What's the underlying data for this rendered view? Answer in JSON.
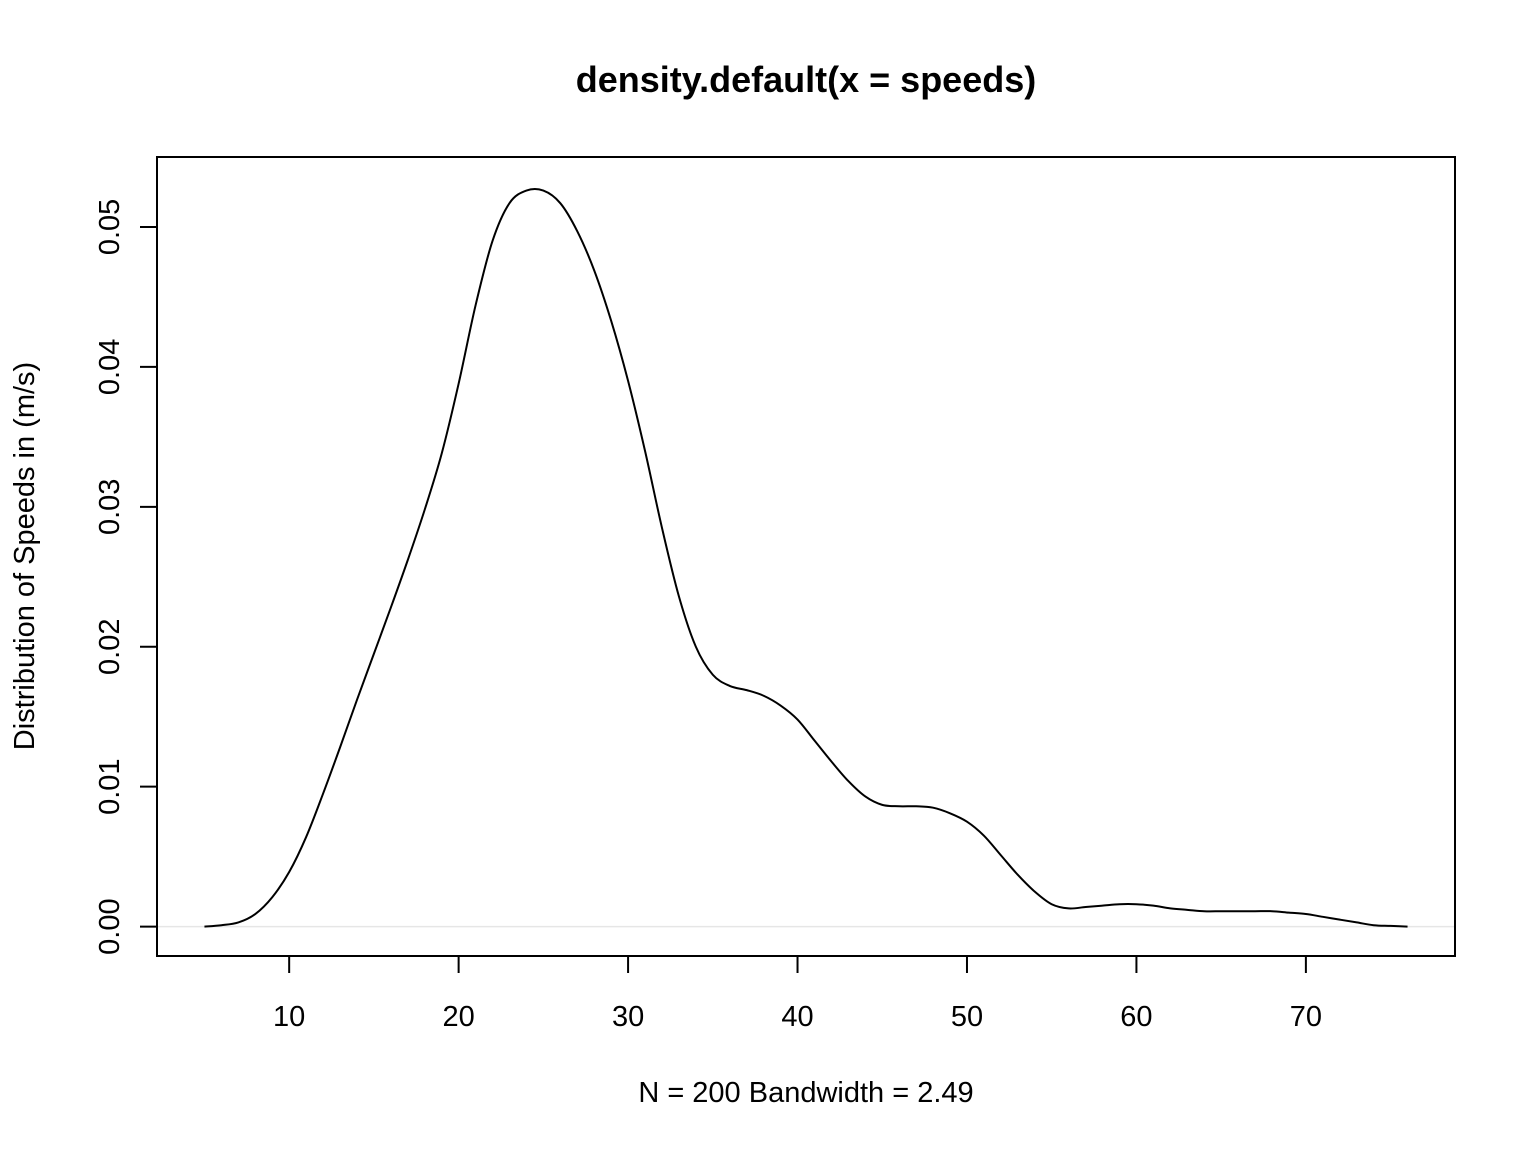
{
  "chart_data": {
    "type": "line",
    "title": "density.default(x = speeds)",
    "xlabel": "N = 200   Bandwidth = 2.49",
    "ylabel": "Distribution of Speeds in (m/s)",
    "xlim": [
      2.2,
      78.8
    ],
    "ylim": [
      -0.0021,
      0.055
    ],
    "x_ticks": [
      10,
      20,
      30,
      40,
      50,
      60,
      70
    ],
    "x_tick_labels": [
      "10",
      "20",
      "30",
      "40",
      "50",
      "60",
      "70"
    ],
    "y_ticks": [
      0.0,
      0.01,
      0.02,
      0.03,
      0.04,
      0.05
    ],
    "y_tick_labels": [
      "0.00",
      "0.01",
      "0.02",
      "0.03",
      "0.04",
      "0.05"
    ],
    "zero_line": true,
    "grid": false,
    "series": [
      {
        "line_color": "#000000",
        "x": [
          5,
          6,
          7,
          8,
          9,
          10,
          11,
          12,
          13,
          14,
          15,
          16,
          17,
          18,
          19,
          20,
          21,
          22,
          23,
          24,
          25,
          26,
          27,
          28,
          29,
          30,
          31,
          32,
          33,
          34,
          35,
          36,
          37,
          38,
          39,
          40,
          41,
          42,
          43,
          44,
          45,
          46,
          47,
          48,
          49,
          50,
          51,
          52,
          53,
          54,
          55,
          56,
          57,
          58,
          59,
          60,
          61,
          62,
          63,
          64,
          65,
          66,
          67,
          68,
          69,
          70,
          71,
          72,
          73,
          74,
          75,
          76
        ],
        "y": [
          0.0,
          0.0001,
          0.0003,
          0.0009,
          0.0021,
          0.0039,
          0.0064,
          0.0095,
          0.0128,
          0.0162,
          0.0195,
          0.0228,
          0.0262,
          0.0298,
          0.0338,
          0.0388,
          0.0444,
          0.049,
          0.0517,
          0.0526,
          0.0526,
          0.0517,
          0.0497,
          0.0469,
          0.0433,
          0.039,
          0.034,
          0.0285,
          0.0236,
          0.02,
          0.018,
          0.0172,
          0.0169,
          0.0165,
          0.0158,
          0.0148,
          0.0133,
          0.0118,
          0.0104,
          0.0093,
          0.0087,
          0.0086,
          0.0086,
          0.0085,
          0.0081,
          0.0075,
          0.0065,
          0.0051,
          0.0037,
          0.0025,
          0.0016,
          0.0013,
          0.0014,
          0.0015,
          0.0016,
          0.0016,
          0.0015,
          0.0013,
          0.0012,
          0.0011,
          0.0011,
          0.0011,
          0.0011,
          0.0011,
          0.001,
          0.0009,
          0.0007,
          0.0005,
          0.0003,
          0.0001,
          5e-05,
          0.0
        ]
      }
    ]
  }
}
